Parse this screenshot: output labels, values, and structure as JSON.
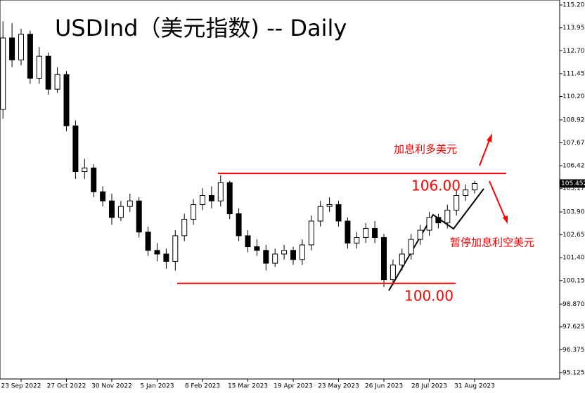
{
  "chart_data": {
    "type": "candlestick",
    "title": "USDInd（美元指数) -- Daily",
    "categories": [
      null,
      null,
      "23 Sep 2022",
      null,
      null,
      null,
      null,
      "27 Oct 2022",
      null,
      null,
      null,
      null,
      "30 Nov 2022",
      null,
      null,
      null,
      null,
      "5 Jan 2023",
      null,
      null,
      null,
      null,
      "8 Feb 2023",
      null,
      null,
      null,
      null,
      "15 Mar 2023",
      null,
      null,
      null,
      null,
      "19 Apr 2023",
      null,
      null,
      null,
      null,
      "23 May 2023",
      null,
      null,
      null,
      null,
      "26 Jun 2023",
      null,
      null,
      null,
      null,
      "28 Jul 2023",
      null,
      null,
      null,
      null,
      "31 Aug 2023"
    ],
    "open": [
      109.5,
      113.4,
      112.2,
      113.6,
      111.2,
      112.4,
      110.6,
      111.4,
      108.6,
      106.1,
      106.3,
      105.0,
      104.5,
      103.6,
      104.2,
      104.5,
      102.8,
      101.8,
      101.6,
      101.2,
      102.6,
      103.5,
      104.3,
      104.8,
      104.5,
      105.5,
      103.8,
      102.6,
      102.0,
      101.8,
      101.1,
      101.6,
      101.8,
      101.3,
      102.1,
      103.4,
      104.2,
      104.3,
      103.4,
      102.2,
      102.5,
      103.0,
      102.5,
      100.2,
      101.0,
      101.6,
      102.4,
      102.9,
      103.6,
      103.3,
      104.0,
      104.8,
      105.1
    ],
    "high": [
      114.3,
      114.2,
      113.9,
      113.8,
      112.9,
      112.6,
      111.8,
      111.6,
      108.9,
      106.8,
      106.5,
      105.3,
      104.9,
      104.5,
      104.9,
      104.7,
      103.1,
      102.2,
      101.9,
      102.9,
      103.8,
      104.6,
      105.2,
      105.3,
      105.9,
      105.6,
      104.1,
      102.9,
      102.4,
      102.1,
      101.9,
      102.1,
      102.0,
      102.4,
      103.7,
      104.5,
      104.7,
      104.5,
      103.6,
      102.8,
      103.3,
      103.4,
      102.7,
      101.3,
      101.9,
      102.7,
      103.2,
      103.9,
      103.8,
      104.3,
      105.1,
      105.4,
      105.6
    ],
    "low": [
      109.0,
      111.8,
      111.9,
      110.9,
      110.9,
      110.3,
      110.4,
      108.3,
      105.7,
      105.7,
      104.7,
      104.2,
      103.2,
      103.4,
      103.9,
      102.5,
      101.5,
      101.2,
      100.8,
      100.7,
      102.3,
      103.2,
      104.0,
      104.1,
      104.2,
      103.5,
      102.3,
      101.7,
      101.5,
      100.7,
      100.9,
      101.3,
      101.0,
      101.0,
      101.8,
      103.1,
      103.9,
      103.1,
      101.9,
      101.9,
      102.2,
      102.2,
      99.8,
      99.9,
      100.7,
      101.3,
      102.1,
      102.6,
      103.0,
      103.0,
      103.7,
      104.5,
      104.9
    ],
    "close": [
      113.4,
      112.2,
      113.6,
      111.2,
      112.4,
      110.6,
      111.4,
      108.6,
      106.1,
      106.3,
      105.0,
      104.5,
      103.6,
      104.2,
      104.5,
      102.8,
      101.8,
      101.6,
      101.2,
      102.6,
      103.5,
      104.3,
      104.8,
      104.5,
      105.5,
      103.8,
      102.6,
      102.0,
      101.8,
      101.1,
      101.6,
      101.8,
      101.3,
      102.1,
      103.4,
      104.2,
      104.3,
      103.4,
      102.2,
      102.5,
      103.0,
      102.5,
      100.2,
      101.0,
      101.6,
      102.4,
      102.9,
      103.6,
      103.3,
      104.0,
      104.8,
      105.1,
      105.45
    ],
    "up_color": "#ffffff",
    "down_color": "#000000",
    "ylim": [
      94.78,
      115.47
    ],
    "yticks": [
      {
        "value": 95.125,
        "label": "95.125"
      },
      {
        "value": 96.375,
        "label": "96.375"
      },
      {
        "value": 97.625,
        "label": "97.625"
      },
      {
        "value": 98.87,
        "label": "98.870"
      },
      {
        "value": 100.15,
        "label": "100.150"
      },
      {
        "value": 101.4,
        "label": "101.400"
      },
      {
        "value": 102.65,
        "label": "102.650"
      },
      {
        "value": 103.9,
        "label": "103.900"
      },
      {
        "value": 105.175,
        "label": "105.175"
      },
      {
        "value": 106.425,
        "label": "106.425"
      },
      {
        "value": 107.675,
        "label": "107.675"
      },
      {
        "value": 108.925,
        "label": "108.925"
      },
      {
        "value": 110.2,
        "label": "110.200"
      },
      {
        "value": 111.45,
        "label": "111.450"
      },
      {
        "value": 112.7,
        "label": "112.700"
      },
      {
        "value": 113.95,
        "label": "113.950"
      },
      {
        "value": 115.2,
        "label": "115.200"
      }
    ],
    "last_price": 105.452,
    "levels": [
      {
        "value": 106.0,
        "label": "106.00",
        "color": "#ff0000"
      },
      {
        "value": 100.0,
        "label": "100.00",
        "color": "#ff0000"
      }
    ],
    "annotations": [
      "加息利多美元",
      "暂停加息利空美元"
    ]
  }
}
